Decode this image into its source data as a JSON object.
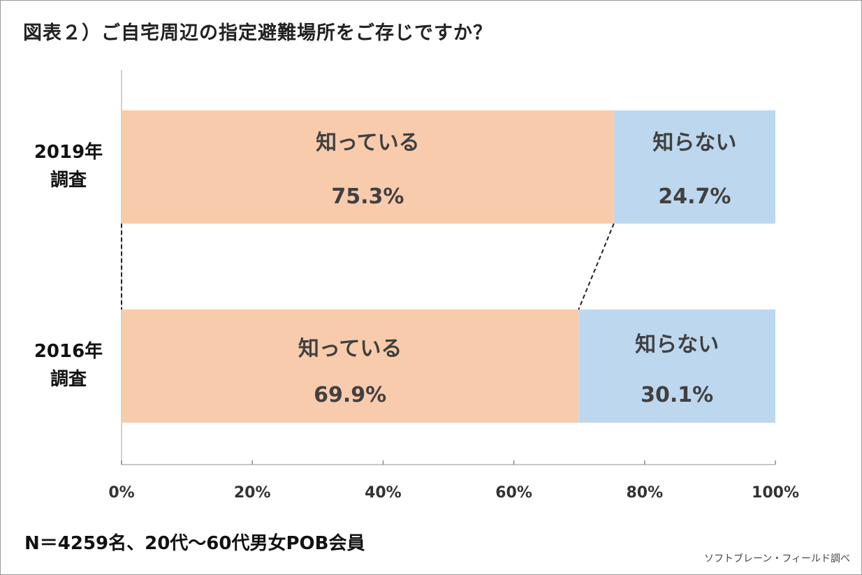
{
  "header": {
    "title": "図表２）ご自宅周辺の指定避難場所をご存じですか？"
  },
  "footer": {
    "sample_note": "N＝4259名、20代～60代男女POB会員",
    "source_note": "ソフトブレーン・フィールド調べ"
  },
  "chart_data": {
    "type": "bar",
    "orientation": "horizontal",
    "stacked": true,
    "title": "図表２）ご自宅周辺の指定避難場所をご存じですか？",
    "categories": [
      "2019年調査",
      "2016年調査"
    ],
    "category_label_lines": [
      [
        "2019年",
        "調査"
      ],
      [
        "2016年",
        "調査"
      ]
    ],
    "series": [
      {
        "name": "知っている",
        "values": [
          75.3,
          69.9
        ],
        "labels": [
          "75.3%",
          "69.9%"
        ],
        "color": "#F8CBAD"
      },
      {
        "name": "知らない",
        "values": [
          24.7,
          30.1
        ],
        "labels": [
          "24.7%",
          "30.1%"
        ],
        "color": "#BDD7EE"
      }
    ],
    "xlim": [
      0,
      100
    ],
    "x_ticks": [
      "0%",
      "20%",
      "40%",
      "60%",
      "80%",
      "100%"
    ],
    "xlabel": "",
    "ylabel": "",
    "grid": false,
    "legend": "none",
    "series_lines": "dashed"
  }
}
